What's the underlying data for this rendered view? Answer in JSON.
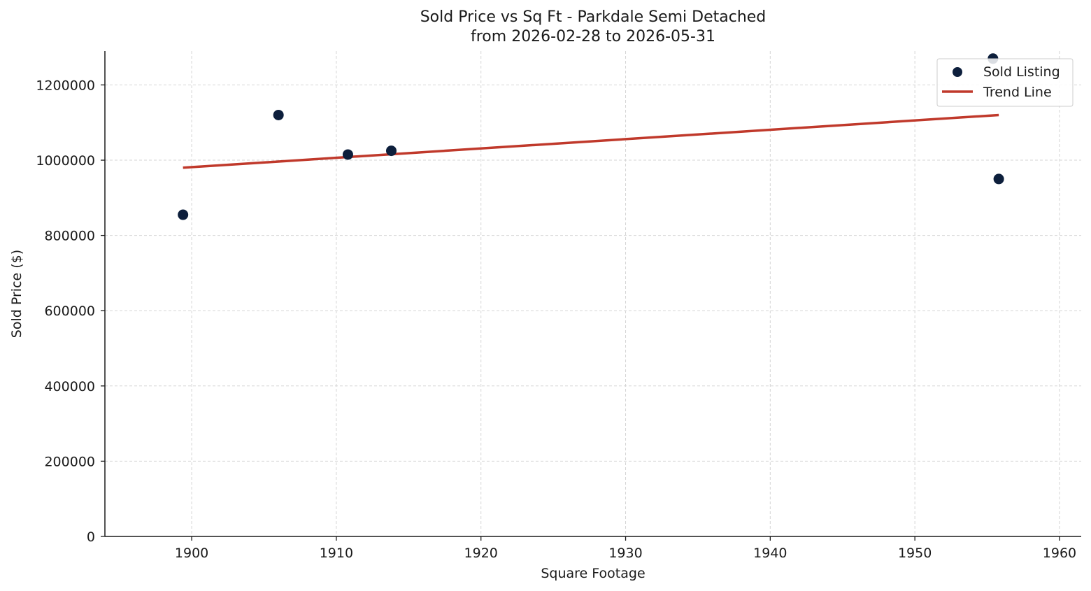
{
  "chart_data": {
    "type": "scatter",
    "title": "Sold Price vs Sq Ft - Parkdale Semi Detached",
    "subtitle": "from 2026-02-28 to 2026-05-31",
    "xlabel": "Square Footage",
    "ylabel": "Sold Price ($)",
    "xlim": [
      1894,
      1961.5
    ],
    "ylim": [
      0,
      1290000
    ],
    "x_ticks": [
      1900,
      1910,
      1920,
      1930,
      1940,
      1950,
      1960
    ],
    "y_ticks": [
      0,
      200000,
      400000,
      600000,
      800000,
      1000000,
      1200000
    ],
    "grid": true,
    "legend_position": "top-right",
    "series": [
      {
        "name": "Sold Listing",
        "kind": "scatter",
        "color": "#0d1f3c",
        "points": [
          {
            "x": 1899.4,
            "y": 855000
          },
          {
            "x": 1906.0,
            "y": 1120000
          },
          {
            "x": 1910.8,
            "y": 1015000
          },
          {
            "x": 1913.8,
            "y": 1025000
          },
          {
            "x": 1955.4,
            "y": 1270000
          },
          {
            "x": 1955.8,
            "y": 950000
          }
        ]
      },
      {
        "name": "Trend Line",
        "kind": "line",
        "color": "#c0392b",
        "points": [
          {
            "x": 1899.4,
            "y": 980000
          },
          {
            "x": 1955.8,
            "y": 1120000
          }
        ]
      }
    ]
  }
}
